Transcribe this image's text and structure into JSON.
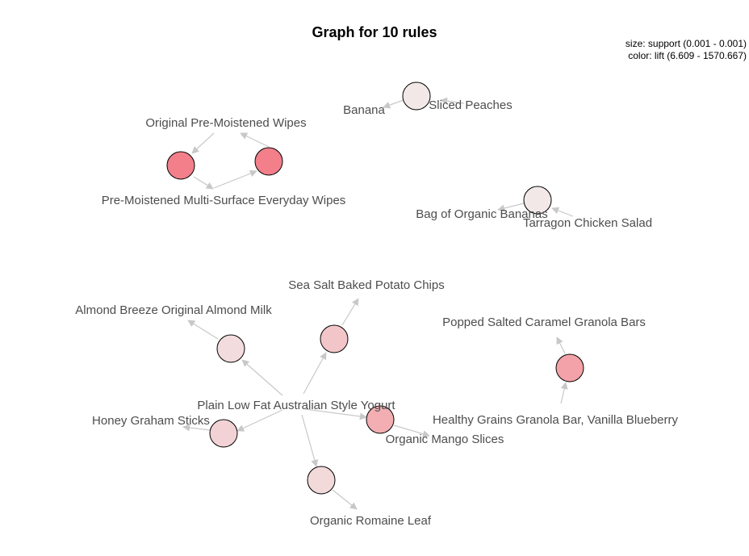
{
  "title": "Graph for 10 rules",
  "legend": {
    "size_line": "size: support (0.001 - 0.001)",
    "color_line": "color: lift (6.609 - 1570.667)"
  },
  "colors": {
    "edge": "#c8c8c8",
    "label": "#4d4d4d",
    "node_stroke": "#000000",
    "lift_low": "#f2e8e8",
    "lift_high": "#f27f8a"
  },
  "items": [
    {
      "id": "banana",
      "label": "Banana"
    },
    {
      "id": "sliced_peaches",
      "label": "Sliced Peaches"
    },
    {
      "id": "orig_wipes",
      "label": "Original Pre-Moistened Wipes"
    },
    {
      "id": "multi_wipes",
      "label": "Pre-Moistened Multi-Surface Everyday Wipes"
    },
    {
      "id": "bag_bananas",
      "label": "Bag of Organic Bananas"
    },
    {
      "id": "tarragon",
      "label": "Tarragon Chicken Salad"
    },
    {
      "id": "sea_salt_chips",
      "label": "Sea Salt Baked Potato Chips"
    },
    {
      "id": "almond_milk",
      "label": "Almond Breeze Original Almond Milk"
    },
    {
      "id": "caramel_bars",
      "label": "Popped Salted Caramel Granola Bars"
    },
    {
      "id": "yogurt",
      "label": "Plain Low Fat Australian Style Yogurt"
    },
    {
      "id": "graham",
      "label": "Honey Graham Sticks"
    },
    {
      "id": "granola_vb",
      "label": "Healthy Grains Granola Bar, Vanilla Blueberry"
    },
    {
      "id": "mango",
      "label": "Organic Mango Slices"
    },
    {
      "id": "romaine",
      "label": "Organic Romaine Leaf"
    }
  ],
  "rules": [
    {
      "id": "rule-1",
      "lhs": "sliced_peaches",
      "rhs": "banana",
      "lift_color": "#f2e8e8"
    },
    {
      "id": "rule-2",
      "lhs": "orig_wipes",
      "rhs": "multi_wipes",
      "lift_color": "#f27f8a"
    },
    {
      "id": "rule-3",
      "lhs": "multi_wipes",
      "rhs": "orig_wipes",
      "lift_color": "#f27f8a"
    },
    {
      "id": "rule-4",
      "lhs": "tarragon",
      "rhs": "bag_bananas",
      "lift_color": "#f2e8e8"
    },
    {
      "id": "rule-5",
      "lhs": "yogurt",
      "rhs": "sea_salt_chips",
      "lift_color": "#f2c6c8"
    },
    {
      "id": "rule-6",
      "lhs": "yogurt",
      "rhs": "almond_milk",
      "lift_color": "#f2dcdd"
    },
    {
      "id": "rule-7",
      "lhs": "granola_vb",
      "rhs": "caramel_bars",
      "lift_color": "#f2a2a8"
    },
    {
      "id": "rule-8",
      "lhs": "yogurt",
      "rhs": "graham",
      "lift_color": "#f2d2d4"
    },
    {
      "id": "rule-9",
      "lhs": "yogurt",
      "rhs": "mango",
      "lift_color": "#f2aeb2"
    },
    {
      "id": "rule-10",
      "lhs": "yogurt",
      "rhs": "romaine",
      "lift_color": "#f2d9da"
    }
  ]
}
